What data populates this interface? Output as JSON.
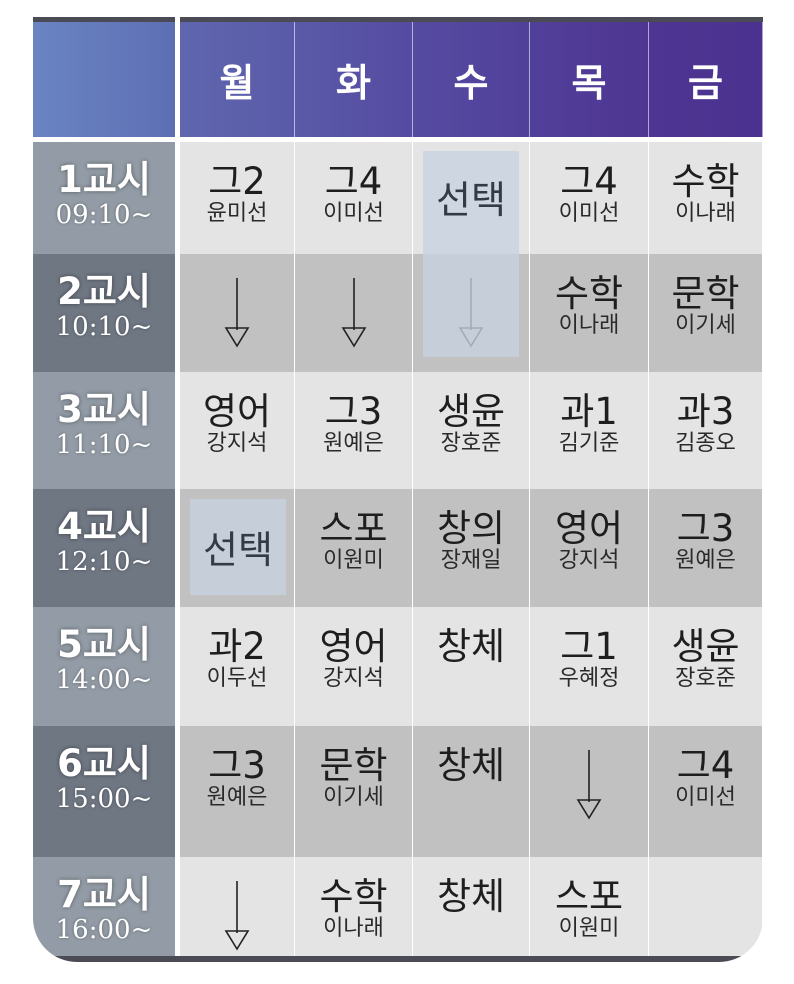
{
  "colors": {
    "header_start": "#6a84c2",
    "header_end": "#4f3592",
    "row_light": "#e4e4e4",
    "row_dark": "#c1c1c1",
    "period_light": "#939ca6",
    "period_dark": "#6f7783",
    "select_highlight": "#c8d3e0"
  },
  "days": [
    "월",
    "화",
    "수",
    "목",
    "금"
  ],
  "periods": [
    {
      "name": "1교시",
      "time": "09:10~"
    },
    {
      "name": "2교시",
      "time": "10:10~"
    },
    {
      "name": "3교시",
      "time": "11:10~"
    },
    {
      "name": "4교시",
      "time": "12:10~"
    },
    {
      "name": "5교시",
      "time": "14:00~"
    },
    {
      "name": "6교시",
      "time": "15:00~"
    },
    {
      "name": "7교시",
      "time": "16:00~"
    }
  ],
  "timetable": [
    [
      {
        "subject": "그2",
        "teacher": "윤미선"
      },
      {
        "subject": "그4",
        "teacher": "이미선"
      },
      {
        "subject": "",
        "teacher": "",
        "select": true
      },
      {
        "subject": "그4",
        "teacher": "이미선"
      },
      {
        "subject": "수학",
        "teacher": "이나래"
      }
    ],
    [
      {
        "arrow": true
      },
      {
        "arrow": true
      },
      {
        "arrow": true,
        "select": true
      },
      {
        "subject": "수학",
        "teacher": "이나래"
      },
      {
        "subject": "문학",
        "teacher": "이기세"
      }
    ],
    [
      {
        "subject": "영어",
        "teacher": "강지석"
      },
      {
        "subject": "그3",
        "teacher": "원예은"
      },
      {
        "subject": "생윤",
        "teacher": "장호준"
      },
      {
        "subject": "과1",
        "teacher": "김기준"
      },
      {
        "subject": "과3",
        "teacher": "김종오"
      }
    ],
    [
      {
        "subject": "",
        "teacher": "",
        "select": true
      },
      {
        "subject": "스포",
        "teacher": "이원미"
      },
      {
        "subject": "창의",
        "teacher": "장재일"
      },
      {
        "subject": "영어",
        "teacher": "강지석"
      },
      {
        "subject": "그3",
        "teacher": "원예은"
      }
    ],
    [
      {
        "subject": "과2",
        "teacher": "이두선"
      },
      {
        "subject": "영어",
        "teacher": "강지석"
      },
      {
        "subject": "창체",
        "teacher": ""
      },
      {
        "subject": "그1",
        "teacher": "우혜정"
      },
      {
        "subject": "생윤",
        "teacher": "장호준"
      }
    ],
    [
      {
        "subject": "그3",
        "teacher": "원예은"
      },
      {
        "subject": "문학",
        "teacher": "이기세"
      },
      {
        "subject": "창체",
        "teacher": ""
      },
      {
        "arrow": true
      },
      {
        "subject": "그4",
        "teacher": "이미선"
      }
    ],
    [
      {
        "arrow": true
      },
      {
        "subject": "수학",
        "teacher": "이나래"
      },
      {
        "subject": "창체",
        "teacher": ""
      },
      {
        "subject": "스포",
        "teacher": "이원미"
      },
      {
        "subject": "",
        "teacher": ""
      }
    ]
  ],
  "select_label": "선택",
  "arrow_icon": "arrow-down-icon"
}
